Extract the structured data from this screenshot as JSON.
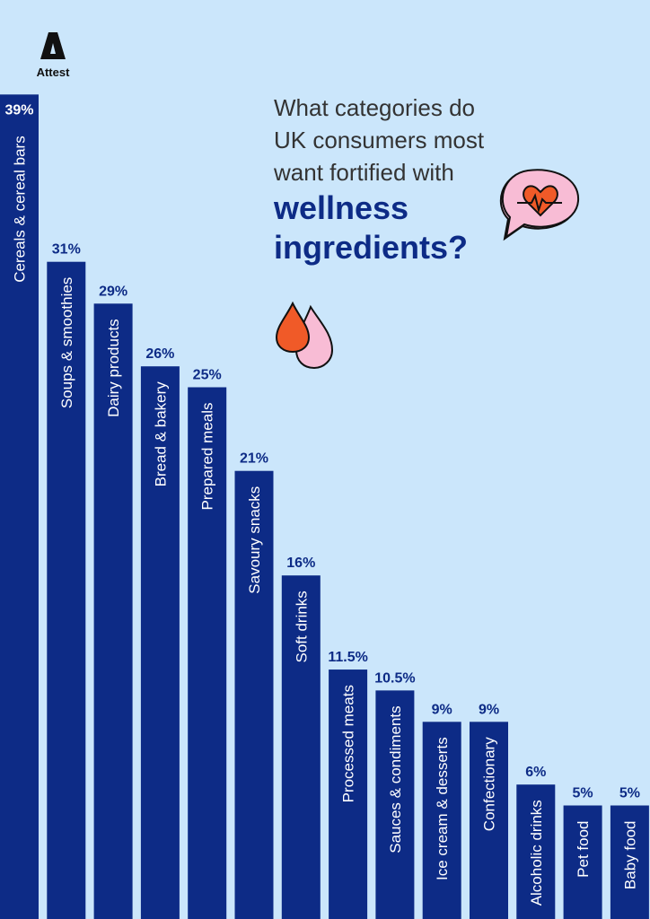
{
  "brand": {
    "name": "Attest"
  },
  "chart_data": {
    "type": "bar",
    "title": "What categories do UK consumers most want fortified with wellness ingredients?",
    "title_lines": [
      "What categories  do",
      "UK consumers most",
      "want fortified with"
    ],
    "title_emphasis": [
      "wellness",
      "ingredients?"
    ],
    "categories": [
      "Cereals & cereal bars",
      "Soups & smoothies",
      "Dairy products",
      "Bread & bakery",
      "Prepared meals",
      "Savoury snacks",
      "Soft drinks",
      "Processed meats",
      "Sauces & condiments",
      "Ice cream & desserts",
      "Confectionary",
      "Alcoholic drinks",
      "Pet food",
      "Baby food"
    ],
    "values": [
      39,
      31,
      29,
      26,
      25,
      21,
      16,
      11.5,
      10.5,
      9,
      9,
      6,
      5,
      5
    ],
    "value_labels": [
      "39%",
      "31%",
      "29%",
      "26%",
      "25%",
      "21%",
      "16%",
      "11.5%",
      "10.5%",
      "9%",
      "9%",
      "6%",
      "5%",
      "5%"
    ],
    "unit": "%",
    "ylim": [
      0,
      40
    ],
    "grid": false,
    "colors": {
      "bar": "#0d2b86",
      "background": "#cbe6fb",
      "label": "#0d2b86"
    }
  },
  "decorations": [
    "heart-speech-bubble-icon",
    "droplets-icon"
  ]
}
